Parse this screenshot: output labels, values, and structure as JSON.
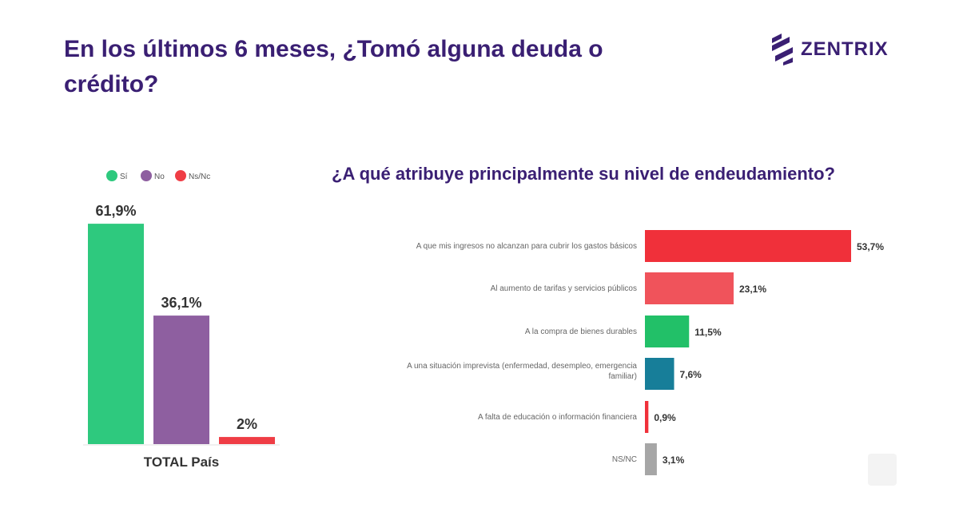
{
  "page": {
    "title": "En los últimos 6 meses, ¿Tomó alguna deuda o crédito?",
    "brand": "ZENTRIX"
  },
  "colors": {
    "title": "#3a1f73",
    "si": "#2ec97e",
    "no": "#8e5fa0",
    "nsnc": "#ef3d45",
    "red_strong": "#f0303a",
    "red_light": "#f0535b",
    "green": "#22c068",
    "teal": "#177e99",
    "gray": "#a6a6a6"
  },
  "chart_data": [
    {
      "type": "bar",
      "categories": [
        "Sí",
        "No",
        "Ns/Nc"
      ],
      "values": [
        61.9,
        36.1,
        2
      ],
      "value_labels": [
        "61,9%",
        "36,1%",
        "2%"
      ],
      "legend": [
        "Sí",
        "No",
        "Ns/Nc"
      ],
      "legend_position": "top",
      "xlabel": "TOTAL País",
      "ylim": [
        0,
        70
      ],
      "grid": false
    },
    {
      "type": "bar",
      "orientation": "horizontal",
      "title": "¿A qué atribuye principalmente su nivel de endeudamiento?",
      "categories": [
        "A que mis ingresos no alcanzan para cubrir los gastos básicos",
        "Al aumento de tarifas y servicios públicos",
        "A la compra de bienes durables",
        "A una situación imprevista (enfermedad, desempleo, emergencia familiar)",
        "A falta de educación o información financiera",
        "NS/NC"
      ],
      "values": [
        53.7,
        23.1,
        11.5,
        7.6,
        0.9,
        3.1
      ],
      "value_labels": [
        "53,7%",
        "23,1%",
        "11,5%",
        "7,6%",
        "0,9%",
        "3,1%"
      ],
      "xlim": [
        0,
        60
      ],
      "grid": false
    }
  ]
}
